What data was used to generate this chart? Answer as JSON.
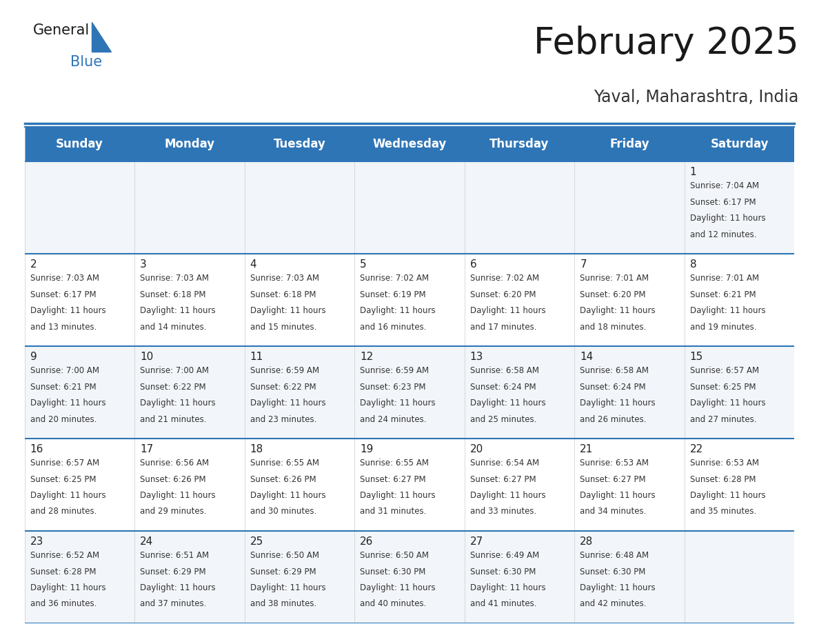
{
  "title": "February 2025",
  "subtitle": "Yaval, Maharashtra, India",
  "header_color": "#2e75b6",
  "header_text_color": "#ffffff",
  "cell_bg_even": "#f2f5f9",
  "cell_bg_odd": "#ffffff",
  "day_headers": [
    "Sunday",
    "Monday",
    "Tuesday",
    "Wednesday",
    "Thursday",
    "Friday",
    "Saturday"
  ],
  "title_fontsize": 38,
  "subtitle_fontsize": 17,
  "header_fontsize": 12,
  "day_num_fontsize": 11,
  "info_fontsize": 8.5,
  "background_color": "#ffffff",
  "header_line_color": "#2e75b6",
  "cell_line_color": "#2e75b6",
  "text_color": "#333333",
  "calendar_data": [
    [
      null,
      null,
      null,
      null,
      null,
      null,
      {
        "day": 1,
        "sunrise": "7:04 AM",
        "sunset": "6:17 PM",
        "daylight": "11 hours and 12 minutes."
      }
    ],
    [
      {
        "day": 2,
        "sunrise": "7:03 AM",
        "sunset": "6:17 PM",
        "daylight": "11 hours and 13 minutes."
      },
      {
        "day": 3,
        "sunrise": "7:03 AM",
        "sunset": "6:18 PM",
        "daylight": "11 hours and 14 minutes."
      },
      {
        "day": 4,
        "sunrise": "7:03 AM",
        "sunset": "6:18 PM",
        "daylight": "11 hours and 15 minutes."
      },
      {
        "day": 5,
        "sunrise": "7:02 AM",
        "sunset": "6:19 PM",
        "daylight": "11 hours and 16 minutes."
      },
      {
        "day": 6,
        "sunrise": "7:02 AM",
        "sunset": "6:20 PM",
        "daylight": "11 hours and 17 minutes."
      },
      {
        "day": 7,
        "sunrise": "7:01 AM",
        "sunset": "6:20 PM",
        "daylight": "11 hours and 18 minutes."
      },
      {
        "day": 8,
        "sunrise": "7:01 AM",
        "sunset": "6:21 PM",
        "daylight": "11 hours and 19 minutes."
      }
    ],
    [
      {
        "day": 9,
        "sunrise": "7:00 AM",
        "sunset": "6:21 PM",
        "daylight": "11 hours and 20 minutes."
      },
      {
        "day": 10,
        "sunrise": "7:00 AM",
        "sunset": "6:22 PM",
        "daylight": "11 hours and 21 minutes."
      },
      {
        "day": 11,
        "sunrise": "6:59 AM",
        "sunset": "6:22 PM",
        "daylight": "11 hours and 23 minutes."
      },
      {
        "day": 12,
        "sunrise": "6:59 AM",
        "sunset": "6:23 PM",
        "daylight": "11 hours and 24 minutes."
      },
      {
        "day": 13,
        "sunrise": "6:58 AM",
        "sunset": "6:24 PM",
        "daylight": "11 hours and 25 minutes."
      },
      {
        "day": 14,
        "sunrise": "6:58 AM",
        "sunset": "6:24 PM",
        "daylight": "11 hours and 26 minutes."
      },
      {
        "day": 15,
        "sunrise": "6:57 AM",
        "sunset": "6:25 PM",
        "daylight": "11 hours and 27 minutes."
      }
    ],
    [
      {
        "day": 16,
        "sunrise": "6:57 AM",
        "sunset": "6:25 PM",
        "daylight": "11 hours and 28 minutes."
      },
      {
        "day": 17,
        "sunrise": "6:56 AM",
        "sunset": "6:26 PM",
        "daylight": "11 hours and 29 minutes."
      },
      {
        "day": 18,
        "sunrise": "6:55 AM",
        "sunset": "6:26 PM",
        "daylight": "11 hours and 30 minutes."
      },
      {
        "day": 19,
        "sunrise": "6:55 AM",
        "sunset": "6:27 PM",
        "daylight": "11 hours and 31 minutes."
      },
      {
        "day": 20,
        "sunrise": "6:54 AM",
        "sunset": "6:27 PM",
        "daylight": "11 hours and 33 minutes."
      },
      {
        "day": 21,
        "sunrise": "6:53 AM",
        "sunset": "6:27 PM",
        "daylight": "11 hours and 34 minutes."
      },
      {
        "day": 22,
        "sunrise": "6:53 AM",
        "sunset": "6:28 PM",
        "daylight": "11 hours and 35 minutes."
      }
    ],
    [
      {
        "day": 23,
        "sunrise": "6:52 AM",
        "sunset": "6:28 PM",
        "daylight": "11 hours and 36 minutes."
      },
      {
        "day": 24,
        "sunrise": "6:51 AM",
        "sunset": "6:29 PM",
        "daylight": "11 hours and 37 minutes."
      },
      {
        "day": 25,
        "sunrise": "6:50 AM",
        "sunset": "6:29 PM",
        "daylight": "11 hours and 38 minutes."
      },
      {
        "day": 26,
        "sunrise": "6:50 AM",
        "sunset": "6:30 PM",
        "daylight": "11 hours and 40 minutes."
      },
      {
        "day": 27,
        "sunrise": "6:49 AM",
        "sunset": "6:30 PM",
        "daylight": "11 hours and 41 minutes."
      },
      {
        "day": 28,
        "sunrise": "6:48 AM",
        "sunset": "6:30 PM",
        "daylight": "11 hours and 42 minutes."
      },
      null
    ]
  ]
}
